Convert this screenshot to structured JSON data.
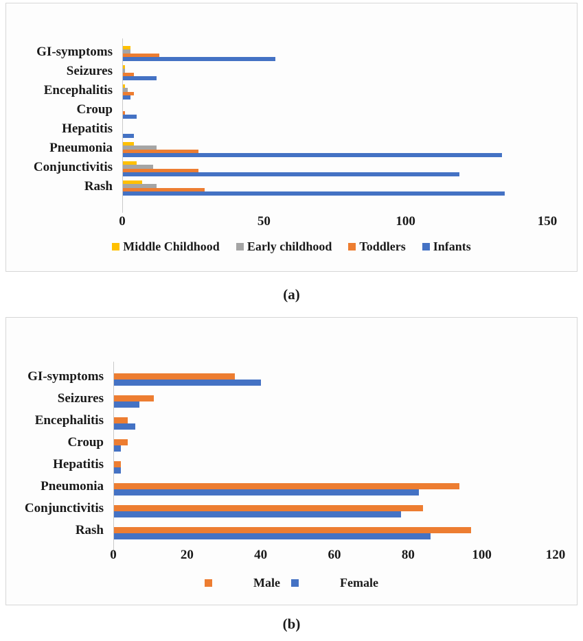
{
  "figure": {
    "caption_a": "(a)",
    "caption_b": "(b)"
  },
  "colors": {
    "middle_childhood_yellow": "#FFC000",
    "early_childhood_gray": "#A5A5A5",
    "toddlers_orange": "#ED7D31",
    "infants_blue": "#4472C4",
    "male_orange": "#ED7D31",
    "female_blue": "#4472C4",
    "axis_line": "#C9C9C9",
    "panel_border": "#D6D6D6"
  },
  "chart_data": [
    {
      "id": "a",
      "type": "bar",
      "orientation": "horizontal",
      "title": "",
      "xlabel": "",
      "ylabel": "",
      "grid": false,
      "legend_position": "bottom",
      "categories": [
        "GI-symptoms",
        "Seizures",
        "Encephalitis",
        "Croup",
        "Hepatitis",
        "Pneumonia",
        "Conjunctivitis",
        "Rash"
      ],
      "series": [
        {
          "name": "Middle Childhood",
          "color": "#FFC000",
          "values": [
            3,
            1,
            1,
            0,
            0,
            4,
            5,
            7
          ]
        },
        {
          "name": "Early childhood",
          "color": "#A5A5A5",
          "values": [
            3,
            1,
            2,
            0,
            0,
            12,
            11,
            12
          ]
        },
        {
          "name": "Toddlers",
          "color": "#ED7D31",
          "values": [
            13,
            4,
            4,
            1,
            0,
            27,
            27,
            29
          ]
        },
        {
          "name": "Infants",
          "color": "#4472C4",
          "values": [
            54,
            12,
            3,
            5,
            4,
            134,
            119,
            135
          ]
        }
      ],
      "x_ticks": [
        0,
        50,
        100,
        150
      ],
      "x_max": 150,
      "xlim": [
        0,
        150
      ]
    },
    {
      "id": "b",
      "type": "bar",
      "orientation": "horizontal",
      "title": "",
      "xlabel": "",
      "ylabel": "",
      "grid": false,
      "legend_position": "bottom",
      "categories": [
        "GI-symptoms",
        "Seizures",
        "Encephalitis",
        "Croup",
        "Hepatitis",
        "Pneumonia",
        "Conjunctivitis",
        "Rash"
      ],
      "series": [
        {
          "name": "Male",
          "color": "#ED7D31",
          "values": [
            33,
            11,
            4,
            4,
            2,
            94,
            84,
            97
          ]
        },
        {
          "name": "Female",
          "color": "#4472C4",
          "values": [
            40,
            7,
            6,
            2,
            2,
            83,
            78,
            86
          ]
        }
      ],
      "x_ticks": [
        0,
        20,
        40,
        60,
        80,
        100,
        120
      ],
      "x_max": 120,
      "xlim": [
        0,
        120
      ]
    }
  ]
}
